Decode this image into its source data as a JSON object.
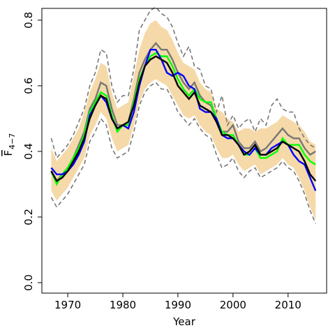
{
  "chart_data": {
    "type": "line",
    "xlabel": "Year",
    "ylabel": "F",
    "ylabel_sub": "4−7",
    "x": [
      1967,
      1968,
      1969,
      1970,
      1971,
      1972,
      1973,
      1974,
      1975,
      1976,
      1977,
      1978,
      1979,
      1980,
      1981,
      1982,
      1983,
      1984,
      1985,
      1986,
      1987,
      1988,
      1989,
      1990,
      1991,
      1992,
      1993,
      1994,
      1995,
      1996,
      1997,
      1998,
      1999,
      2000,
      2001,
      2002,
      2003,
      2004,
      2005,
      2006,
      2007,
      2008,
      2009,
      2010,
      2011,
      2012,
      2013,
      2014,
      2015
    ],
    "xlim": [
      1965.3,
      2017.0
    ],
    "xticks": [
      1970,
      1980,
      1990,
      2000,
      2010
    ],
    "ylim": [
      -0.032,
      0.836
    ],
    "yticks": [
      {
        "value": 0,
        "label": "0.0"
      },
      0.2,
      0.4,
      0.6,
      0.8
    ],
    "band": {
      "color": "#f5d9a8",
      "lower": [
        0.28,
        0.25,
        0.27,
        0.29,
        0.32,
        0.35,
        0.38,
        0.45,
        0.48,
        0.52,
        0.5,
        0.44,
        0.4,
        0.41,
        0.42,
        0.48,
        0.55,
        0.59,
        0.61,
        0.62,
        0.61,
        0.6,
        0.57,
        0.54,
        0.51,
        0.5,
        0.51,
        0.48,
        0.46,
        0.45,
        0.41,
        0.38,
        0.38,
        0.39,
        0.36,
        0.34,
        0.35,
        0.36,
        0.33,
        0.34,
        0.35,
        0.36,
        0.38,
        0.36,
        0.35,
        0.32,
        0.28,
        0.23,
        0.19
      ],
      "upper": [
        0.41,
        0.37,
        0.39,
        0.41,
        0.44,
        0.47,
        0.52,
        0.58,
        0.62,
        0.67,
        0.66,
        0.58,
        0.53,
        0.54,
        0.55,
        0.63,
        0.71,
        0.76,
        0.79,
        0.8,
        0.78,
        0.77,
        0.74,
        0.7,
        0.67,
        0.66,
        0.65,
        0.61,
        0.59,
        0.58,
        0.53,
        0.52,
        0.5,
        0.49,
        0.46,
        0.47,
        0.47,
        0.46,
        0.47,
        0.47,
        0.48,
        0.49,
        0.51,
        0.5,
        0.49,
        0.48,
        0.46,
        0.43,
        0.42
      ]
    },
    "series": [
      {
        "color": "#777777",
        "dash": true,
        "values": [
          0.44,
          0.38,
          0.4,
          0.42,
          0.45,
          0.49,
          0.53,
          0.6,
          0.64,
          0.71,
          0.7,
          0.6,
          0.55,
          0.57,
          0.57,
          0.65,
          0.77,
          0.8,
          0.83,
          0.84,
          0.82,
          0.81,
          0.78,
          0.73,
          0.69,
          0.72,
          0.66,
          0.65,
          0.6,
          0.59,
          0.52,
          0.57,
          0.48,
          0.51,
          0.47,
          0.49,
          0.5,
          0.46,
          0.5,
          0.48,
          0.54,
          0.56,
          0.53,
          0.52,
          0.52,
          0.47,
          0.44,
          0.42,
          0.41
        ]
      },
      {
        "color": "#777777",
        "dash": true,
        "values": [
          0.26,
          0.23,
          0.25,
          0.27,
          0.3,
          0.33,
          0.36,
          0.43,
          0.46,
          0.5,
          0.48,
          0.41,
          0.38,
          0.39,
          0.4,
          0.46,
          0.54,
          0.58,
          0.6,
          0.61,
          0.59,
          0.59,
          0.56,
          0.52,
          0.5,
          0.48,
          0.5,
          0.47,
          0.45,
          0.44,
          0.39,
          0.35,
          0.36,
          0.38,
          0.34,
          0.32,
          0.34,
          0.35,
          0.32,
          0.33,
          0.34,
          0.35,
          0.37,
          0.35,
          0.34,
          0.31,
          0.27,
          0.22,
          0.18
        ]
      },
      {
        "color": "#777777",
        "dash": false,
        "values": [
          0.34,
          0.31,
          0.33,
          0.35,
          0.38,
          0.42,
          0.46,
          0.53,
          0.56,
          0.61,
          0.6,
          0.53,
          0.48,
          0.48,
          0.49,
          0.56,
          0.64,
          0.68,
          0.71,
          0.73,
          0.71,
          0.71,
          0.68,
          0.64,
          0.61,
          0.59,
          0.61,
          0.57,
          0.55,
          0.54,
          0.5,
          0.46,
          0.46,
          0.48,
          0.43,
          0.41,
          0.41,
          0.43,
          0.4,
          0.41,
          0.43,
          0.45,
          0.47,
          0.45,
          0.44,
          0.44,
          0.41,
          0.39,
          0.4
        ]
      },
      {
        "color": "#00ff00",
        "dash": false,
        "values": [
          0.34,
          0.3,
          0.33,
          0.35,
          0.38,
          0.41,
          0.45,
          0.52,
          0.55,
          0.58,
          0.57,
          0.51,
          0.46,
          0.48,
          0.48,
          0.55,
          0.62,
          0.66,
          0.69,
          0.7,
          0.69,
          0.69,
          0.66,
          0.62,
          0.59,
          0.57,
          0.59,
          0.56,
          0.55,
          0.55,
          0.5,
          0.46,
          0.45,
          0.45,
          0.42,
          0.39,
          0.39,
          0.41,
          0.38,
          0.38,
          0.39,
          0.4,
          0.44,
          0.42,
          0.42,
          0.42,
          0.39,
          0.37,
          0.36
        ]
      },
      {
        "color": "#0000ff",
        "dash": false,
        "values": [
          0.35,
          0.33,
          0.33,
          0.34,
          0.36,
          0.39,
          0.43,
          0.51,
          0.54,
          0.57,
          0.55,
          0.5,
          0.47,
          0.48,
          0.47,
          0.52,
          0.6,
          0.66,
          0.71,
          0.71,
          0.68,
          0.64,
          0.63,
          0.64,
          0.63,
          0.6,
          0.59,
          0.53,
          0.52,
          0.52,
          0.5,
          0.45,
          0.44,
          0.44,
          0.42,
          0.4,
          0.39,
          0.41,
          0.39,
          0.39,
          0.41,
          0.42,
          0.43,
          0.42,
          0.39,
          0.37,
          0.36,
          0.32,
          0.28
        ]
      },
      {
        "color": "#000000",
        "dash": false,
        "values": [
          0.34,
          0.31,
          0.32,
          0.34,
          0.37,
          0.4,
          0.44,
          0.5,
          0.54,
          0.57,
          0.56,
          0.5,
          0.47,
          0.48,
          0.49,
          0.54,
          0.61,
          0.66,
          0.68,
          0.69,
          0.68,
          0.67,
          0.64,
          0.6,
          0.58,
          0.56,
          0.58,
          0.54,
          0.53,
          0.52,
          0.49,
          0.45,
          0.45,
          0.44,
          0.42,
          0.39,
          0.4,
          0.42,
          0.39,
          0.39,
          0.4,
          0.41,
          0.43,
          0.42,
          0.41,
          0.4,
          0.37,
          0.33,
          0.31
        ]
      }
    ]
  }
}
